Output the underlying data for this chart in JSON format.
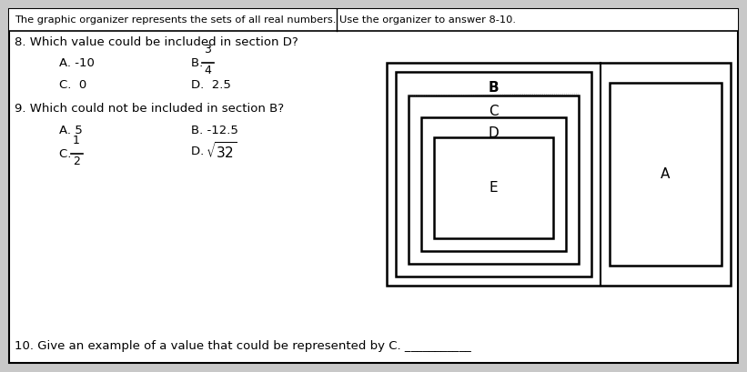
{
  "bg_color": "#c8c8c8",
  "border_color": "#000000",
  "text_color": "#000000",
  "header_text": "The graphic organizer represents the sets of all real numbers. Use the organizer to answer 8-10.",
  "q8_text": "8. Which value could be included in section D?",
  "q8_A": "A. -10",
  "q8_B_num": "3",
  "q8_B_den": "4",
  "q8_C": "C.  0",
  "q8_D": "D.  2.5",
  "q9_text": "9. Which could not be included in section B?",
  "q9_A": "A. 5",
  "q9_B": "B. -12.5",
  "q9_C_num": "1",
  "q9_C_den": "2",
  "q9_D_sqrt": "32",
  "q10_text": "10. Give an example of a value that could be represented by C. ___________",
  "fig_width": 8.21,
  "fig_height": 4.09,
  "dpi": 100
}
